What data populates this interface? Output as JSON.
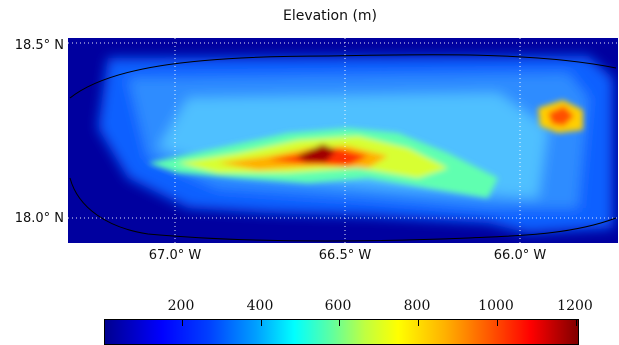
{
  "title": "Elevation (m)",
  "map": {
    "lat_labels": [
      "18.5° N",
      "18.0° N"
    ],
    "lon_labels": [
      "67.0° W",
      "66.5° W",
      "66.0° W"
    ]
  },
  "colorbar": {
    "ticks": [
      "200",
      "400",
      "600",
      "800",
      "1000",
      "1200"
    ],
    "range": [
      0,
      1300
    ],
    "colors": [
      "#00008f",
      "#0000ff",
      "#00ffff",
      "#ffff00",
      "#ff0000",
      "#800000"
    ]
  }
}
